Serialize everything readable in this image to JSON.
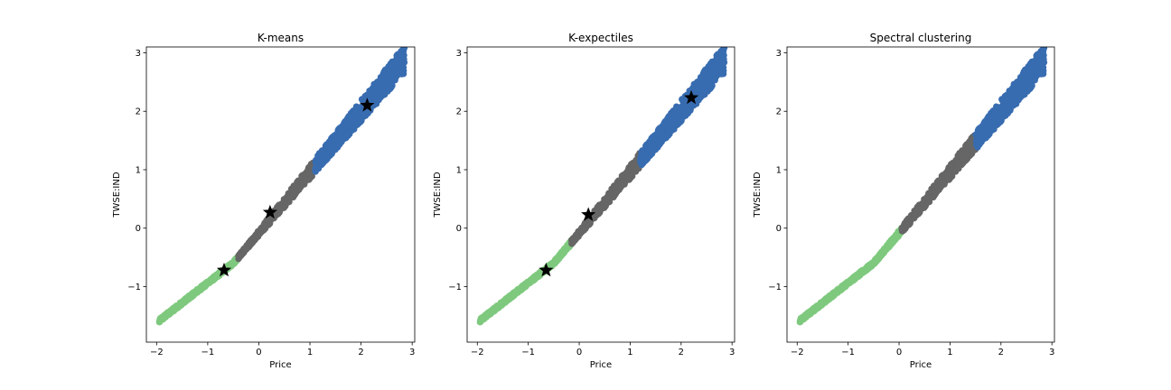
{
  "chart_data": [
    {
      "type": "scatter",
      "title": "K-means",
      "xlabel": "Price",
      "ylabel": "TWSE:IND",
      "xlim": [
        -2.2,
        3.05
      ],
      "ylim": [
        -1.95,
        3.1
      ],
      "xticks": [
        "−2",
        "−1",
        "0",
        "1",
        "2",
        "3"
      ],
      "xtick_values": [
        -2,
        -1,
        0,
        1,
        2,
        3
      ],
      "yticks": [
        "−1",
        "0",
        "1",
        "2",
        "3"
      ],
      "ytick_values": [
        -1,
        0,
        1,
        2,
        3
      ],
      "grid": false,
      "series": [
        {
          "cluster": 1,
          "color": "#7fc97f",
          "x_range": [
            -1.95,
            -0.4
          ]
        },
        {
          "cluster": 2,
          "color": "#666666",
          "x_range": [
            -0.4,
            1.1
          ]
        },
        {
          "cluster": 3,
          "color": "#386cb0",
          "x_range": [
            1.1,
            2.85
          ]
        }
      ],
      "centroids": [
        {
          "x": -0.68,
          "y": -0.72
        },
        {
          "x": 0.22,
          "y": 0.27
        },
        {
          "x": 2.12,
          "y": 2.1
        }
      ]
    },
    {
      "type": "scatter",
      "title": "K-expectiles",
      "xlabel": "Price",
      "ylabel": "TWSE:IND",
      "xlim": [
        -2.2,
        3.05
      ],
      "ylim": [
        -1.95,
        3.1
      ],
      "xticks": [
        "−2",
        "−1",
        "0",
        "1",
        "2",
        "3"
      ],
      "xtick_values": [
        -2,
        -1,
        0,
        1,
        2,
        3
      ],
      "yticks": [
        "−1",
        "0",
        "1",
        "2",
        "3"
      ],
      "ytick_values": [
        -1,
        0,
        1,
        2,
        3
      ],
      "grid": false,
      "series": [
        {
          "cluster": 1,
          "color": "#7fc97f",
          "x_range": [
            -1.95,
            -0.15
          ]
        },
        {
          "cluster": 2,
          "color": "#666666",
          "x_range": [
            -0.15,
            1.2
          ]
        },
        {
          "cluster": 3,
          "color": "#386cb0",
          "x_range": [
            1.2,
            2.85
          ]
        }
      ],
      "centroids": [
        {
          "x": -0.65,
          "y": -0.72
        },
        {
          "x": 0.18,
          "y": 0.23
        },
        {
          "x": 2.2,
          "y": 2.23
        }
      ]
    },
    {
      "type": "scatter",
      "title": "Spectral clustering",
      "xlabel": "Price",
      "ylabel": "TWSE:IND",
      "xlim": [
        -2.2,
        3.05
      ],
      "ylim": [
        -1.95,
        3.1
      ],
      "xticks": [
        "−2",
        "−1",
        "0",
        "1",
        "2",
        "3"
      ],
      "xtick_values": [
        -2,
        -1,
        0,
        1,
        2,
        3
      ],
      "yticks": [
        "−1",
        "0",
        "1",
        "2",
        "3"
      ],
      "ytick_values": [
        -1,
        0,
        1,
        2,
        3
      ],
      "grid": false,
      "series": [
        {
          "cluster": 1,
          "color": "#7fc97f",
          "x_range": [
            -1.95,
            0.05
          ]
        },
        {
          "cluster": 2,
          "color": "#666666",
          "x_range": [
            0.05,
            1.5
          ]
        },
        {
          "cluster": 3,
          "color": "#386cb0",
          "x_range": [
            1.5,
            2.85
          ]
        }
      ],
      "centroids": []
    }
  ]
}
